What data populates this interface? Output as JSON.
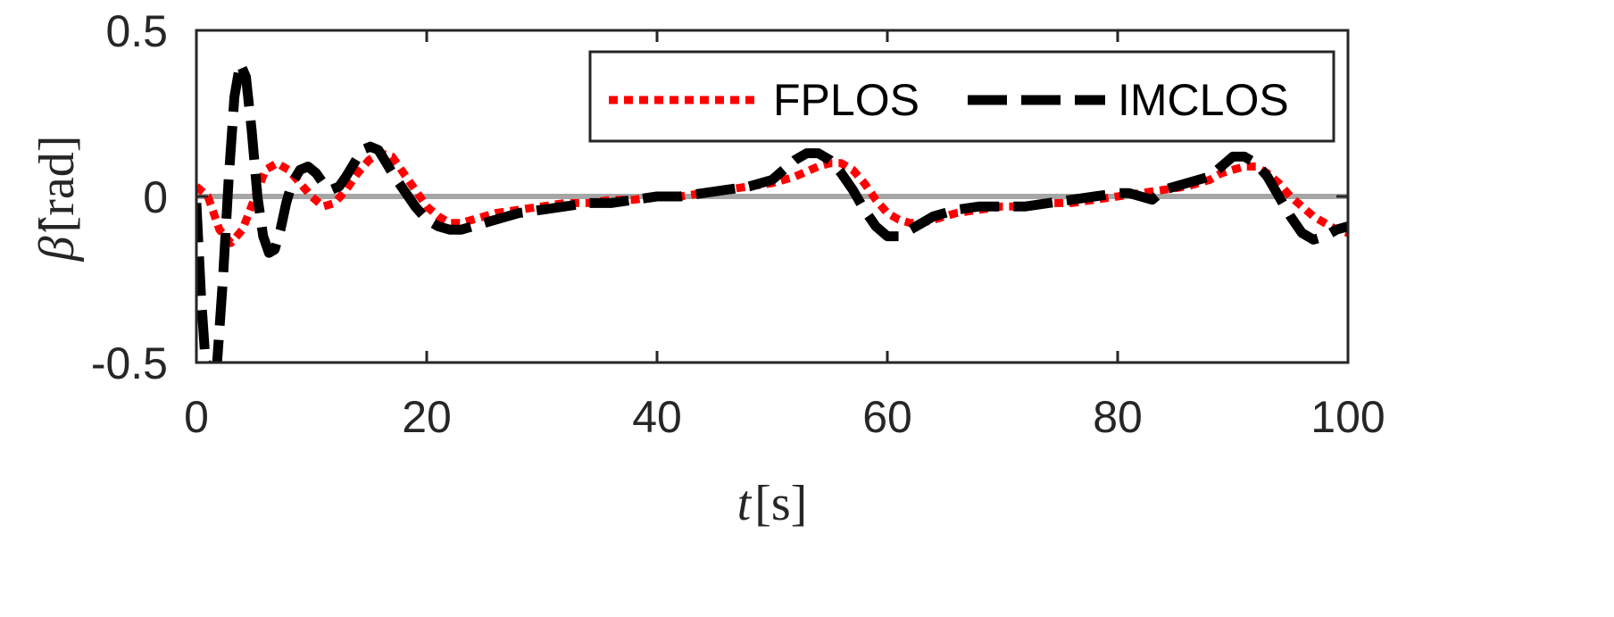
{
  "chart_data": {
    "type": "line",
    "xlabel": {
      "symbol": "t",
      "unit": "[s]"
    },
    "ylabel": {
      "symbol": "β̂",
      "unit": "[rad]"
    },
    "xlim": [
      0,
      100
    ],
    "ylim": [
      -0.5,
      0.5
    ],
    "x_ticks": [
      "0",
      "20",
      "40",
      "60",
      "80",
      "100"
    ],
    "y_ticks": [
      "-0.5",
      "0",
      "0.5"
    ],
    "grid": false,
    "legend_position": "top-right",
    "reference_line": {
      "y": 0,
      "color": "#a6a6a6"
    },
    "series": [
      {
        "name": "FPLOS",
        "color": "#ff0000",
        "style": "dotted",
        "x": [
          0,
          1,
          2,
          3,
          4,
          5,
          6,
          7,
          8,
          9,
          10,
          11,
          12,
          13,
          14,
          15,
          16,
          17,
          18,
          19,
          20,
          21,
          22,
          23,
          24,
          25,
          26,
          28,
          30,
          32,
          34,
          36,
          38,
          40,
          42,
          44,
          46,
          48,
          50,
          52,
          54,
          55,
          56,
          57,
          58,
          59,
          60,
          61,
          62,
          63,
          64,
          66,
          68,
          70,
          72,
          74,
          76,
          78,
          80,
          82,
          84,
          86,
          88,
          89,
          90,
          91,
          92,
          93,
          94,
          95,
          96,
          97,
          98,
          99,
          100
        ],
        "y": [
          0.03,
          0.0,
          -0.1,
          -0.14,
          -0.1,
          -0.01,
          0.08,
          0.1,
          0.08,
          0.04,
          0.0,
          -0.03,
          -0.02,
          0.02,
          0.07,
          0.11,
          0.13,
          0.12,
          0.07,
          0.02,
          -0.03,
          -0.06,
          -0.08,
          -0.08,
          -0.07,
          -0.06,
          -0.05,
          -0.04,
          -0.03,
          -0.02,
          -0.02,
          -0.01,
          -0.01,
          0.0,
          0.0,
          0.01,
          0.02,
          0.03,
          0.04,
          0.06,
          0.09,
          0.1,
          0.1,
          0.08,
          0.04,
          -0.01,
          -0.05,
          -0.07,
          -0.08,
          -0.08,
          -0.07,
          -0.05,
          -0.04,
          -0.03,
          -0.03,
          -0.02,
          -0.02,
          -0.01,
          0.0,
          0.01,
          0.02,
          0.03,
          0.05,
          0.07,
          0.08,
          0.09,
          0.09,
          0.07,
          0.04,
          0.0,
          -0.03,
          -0.06,
          -0.08,
          -0.1,
          -0.11
        ]
      },
      {
        "name": "IMCLOS",
        "color": "#000000",
        "style": "dashed",
        "x": [
          0,
          0.4,
          0.8,
          1.3,
          1.8,
          2.3,
          2.8,
          3.3,
          3.8,
          4.3,
          4.8,
          5.3,
          5.8,
          6.3,
          6.8,
          7.3,
          7.8,
          8.3,
          9,
          9.7,
          10.4,
          11,
          11.7,
          12.4,
          13,
          13.7,
          14.4,
          15.1,
          15.8,
          16.5,
          17.2,
          18,
          19,
          20,
          21,
          22,
          23,
          24,
          26,
          28,
          30,
          32,
          34,
          36,
          38,
          40,
          42,
          44,
          46,
          48,
          50,
          51,
          52,
          53,
          54,
          55,
          56,
          57,
          58,
          59,
          60,
          61,
          62,
          63,
          64,
          66,
          68,
          70,
          72,
          74,
          76,
          78,
          80,
          81,
          82,
          83,
          84,
          86,
          88,
          89,
          90,
          91,
          92,
          93,
          94,
          95,
          96,
          97,
          98,
          99,
          100
        ],
        "y": [
          -0.02,
          -0.3,
          -0.5,
          -0.52,
          -0.5,
          -0.25,
          0.05,
          0.3,
          0.4,
          0.36,
          0.2,
          0.0,
          -0.12,
          -0.17,
          -0.16,
          -0.1,
          -0.02,
          0.04,
          0.08,
          0.09,
          0.07,
          0.04,
          0.02,
          0.03,
          0.06,
          0.1,
          0.14,
          0.15,
          0.14,
          0.1,
          0.06,
          0.02,
          -0.03,
          -0.07,
          -0.09,
          -0.1,
          -0.1,
          -0.09,
          -0.07,
          -0.05,
          -0.04,
          -0.03,
          -0.02,
          -0.02,
          -0.01,
          0.0,
          0.0,
          0.01,
          0.02,
          0.03,
          0.05,
          0.08,
          0.11,
          0.13,
          0.13,
          0.11,
          0.07,
          0.02,
          -0.04,
          -0.09,
          -0.12,
          -0.12,
          -0.1,
          -0.08,
          -0.06,
          -0.04,
          -0.03,
          -0.03,
          -0.03,
          -0.02,
          -0.01,
          0.0,
          0.01,
          0.01,
          0.0,
          -0.01,
          0.02,
          0.04,
          0.06,
          0.09,
          0.12,
          0.12,
          0.1,
          0.06,
          0.0,
          -0.06,
          -0.11,
          -0.13,
          -0.12,
          -0.1,
          -0.09
        ]
      }
    ]
  }
}
